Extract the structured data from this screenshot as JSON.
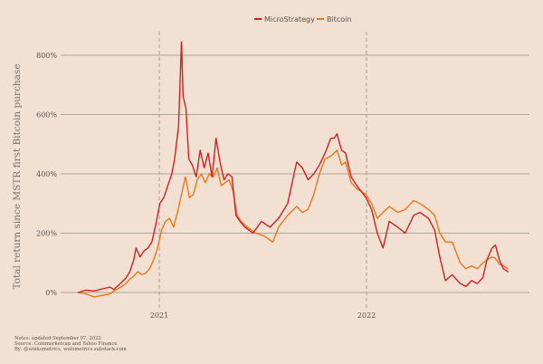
{
  "chart_data": {
    "type": "line",
    "title": "",
    "xlabel": "",
    "ylabel": "Total return since MSTR first Bitcoin purchase",
    "x_ticks": [
      "2021",
      "2022"
    ],
    "y_ticks": [
      "0%",
      "200%",
      "400%",
      "600%",
      "800%"
    ],
    "y_tick_values": [
      0,
      200,
      400,
      600,
      800
    ],
    "ylim": [
      -30,
      850
    ],
    "grid": "horizontal",
    "legend_position": "top-center",
    "series": [
      {
        "name": "MicroStrategy",
        "color": "#d7191c",
        "points": [
          [
            "2020-08-11",
            0
          ],
          [
            "2020-08-25",
            8
          ],
          [
            "2020-09-08",
            5
          ],
          [
            "2020-09-22",
            12
          ],
          [
            "2020-10-06",
            18
          ],
          [
            "2020-10-13",
            10
          ],
          [
            "2020-10-20",
            22
          ],
          [
            "2020-10-27",
            35
          ],
          [
            "2020-11-03",
            48
          ],
          [
            "2020-11-10",
            70
          ],
          [
            "2020-11-17",
            110
          ],
          [
            "2020-11-21",
            150
          ],
          [
            "2020-11-28",
            120
          ],
          [
            "2020-12-05",
            140
          ],
          [
            "2020-12-12",
            150
          ],
          [
            "2020-12-19",
            170
          ],
          [
            "2020-12-26",
            230
          ],
          [
            "2021-01-02",
            300
          ],
          [
            "2021-01-09",
            320
          ],
          [
            "2021-01-16",
            360
          ],
          [
            "2021-01-23",
            400
          ],
          [
            "2021-01-28",
            450
          ],
          [
            "2021-02-04",
            560
          ],
          [
            "2021-02-09",
            845
          ],
          [
            "2021-02-12",
            660
          ],
          [
            "2021-02-17",
            620
          ],
          [
            "2021-02-22",
            450
          ],
          [
            "2021-02-28",
            430
          ],
          [
            "2021-03-07",
            390
          ],
          [
            "2021-03-14",
            480
          ],
          [
            "2021-03-21",
            420
          ],
          [
            "2021-03-28",
            470
          ],
          [
            "2021-04-04",
            390
          ],
          [
            "2021-04-11",
            520
          ],
          [
            "2021-04-18",
            440
          ],
          [
            "2021-04-25",
            380
          ],
          [
            "2021-05-02",
            400
          ],
          [
            "2021-05-09",
            390
          ],
          [
            "2021-05-16",
            260
          ],
          [
            "2021-05-23",
            240
          ],
          [
            "2021-06-01",
            220
          ],
          [
            "2021-06-15",
            200
          ],
          [
            "2021-06-30",
            240
          ],
          [
            "2021-07-15",
            220
          ],
          [
            "2021-07-30",
            250
          ],
          [
            "2021-08-15",
            300
          ],
          [
            "2021-08-31",
            440
          ],
          [
            "2021-09-10",
            420
          ],
          [
            "2021-09-20",
            380
          ],
          [
            "2021-09-30",
            400
          ],
          [
            "2021-10-10",
            430
          ],
          [
            "2021-10-20",
            470
          ],
          [
            "2021-10-30",
            520
          ],
          [
            "2021-11-05",
            520
          ],
          [
            "2021-11-10",
            535
          ],
          [
            "2021-11-18",
            480
          ],
          [
            "2021-11-25",
            470
          ],
          [
            "2021-12-05",
            390
          ],
          [
            "2021-12-15",
            360
          ],
          [
            "2021-12-31",
            320
          ],
          [
            "2022-01-10",
            280
          ],
          [
            "2022-01-20",
            200
          ],
          [
            "2022-01-30",
            150
          ],
          [
            "2022-02-10",
            240
          ],
          [
            "2022-02-25",
            220
          ],
          [
            "2022-03-10",
            200
          ],
          [
            "2022-03-25",
            260
          ],
          [
            "2022-04-05",
            270
          ],
          [
            "2022-04-20",
            250
          ],
          [
            "2022-05-01",
            210
          ],
          [
            "2022-05-10",
            120
          ],
          [
            "2022-05-20",
            40
          ],
          [
            "2022-06-01",
            60
          ],
          [
            "2022-06-15",
            30
          ],
          [
            "2022-06-25",
            20
          ],
          [
            "2022-07-05",
            40
          ],
          [
            "2022-07-15",
            30
          ],
          [
            "2022-07-25",
            50
          ],
          [
            "2022-08-01",
            110
          ],
          [
            "2022-08-10",
            150
          ],
          [
            "2022-08-16",
            160
          ],
          [
            "2022-08-23",
            110
          ],
          [
            "2022-08-30",
            80
          ],
          [
            "2022-09-07",
            70
          ]
        ]
      },
      {
        "name": "Bitcoin",
        "color": "#f0730f",
        "points": [
          [
            "2020-08-11",
            0
          ],
          [
            "2020-08-25",
            -5
          ],
          [
            "2020-09-08",
            -15
          ],
          [
            "2020-09-22",
            -10
          ],
          [
            "2020-10-06",
            -5
          ],
          [
            "2020-10-13",
            5
          ],
          [
            "2020-10-20",
            12
          ],
          [
            "2020-10-27",
            20
          ],
          [
            "2020-11-03",
            30
          ],
          [
            "2020-11-10",
            45
          ],
          [
            "2020-11-17",
            55
          ],
          [
            "2020-11-24",
            70
          ],
          [
            "2020-12-01",
            60
          ],
          [
            "2020-12-08",
            65
          ],
          [
            "2020-12-15",
            80
          ],
          [
            "2020-12-22",
            110
          ],
          [
            "2020-12-29",
            150
          ],
          [
            "2021-01-05",
            210
          ],
          [
            "2021-01-12",
            240
          ],
          [
            "2021-01-19",
            250
          ],
          [
            "2021-01-26",
            220
          ],
          [
            "2021-02-02",
            270
          ],
          [
            "2021-02-09",
            330
          ],
          [
            "2021-02-16",
            390
          ],
          [
            "2021-02-23",
            320
          ],
          [
            "2021-03-02",
            330
          ],
          [
            "2021-03-09",
            380
          ],
          [
            "2021-03-16",
            400
          ],
          [
            "2021-03-23",
            370
          ],
          [
            "2021-03-30",
            400
          ],
          [
            "2021-04-06",
            390
          ],
          [
            "2021-04-13",
            420
          ],
          [
            "2021-04-20",
            360
          ],
          [
            "2021-04-27",
            370
          ],
          [
            "2021-05-04",
            380
          ],
          [
            "2021-05-11",
            340
          ],
          [
            "2021-05-18",
            260
          ],
          [
            "2021-05-25",
            240
          ],
          [
            "2021-06-05",
            220
          ],
          [
            "2021-06-20",
            200
          ],
          [
            "2021-07-05",
            190
          ],
          [
            "2021-07-20",
            170
          ],
          [
            "2021-07-30",
            220
          ],
          [
            "2021-08-15",
            260
          ],
          [
            "2021-08-31",
            290
          ],
          [
            "2021-09-10",
            270
          ],
          [
            "2021-09-20",
            280
          ],
          [
            "2021-09-30",
            330
          ],
          [
            "2021-10-10",
            400
          ],
          [
            "2021-10-20",
            450
          ],
          [
            "2021-10-30",
            460
          ],
          [
            "2021-11-05",
            470
          ],
          [
            "2021-11-10",
            480
          ],
          [
            "2021-11-18",
            430
          ],
          [
            "2021-11-25",
            440
          ],
          [
            "2021-12-05",
            370
          ],
          [
            "2021-12-15",
            350
          ],
          [
            "2021-12-31",
            330
          ],
          [
            "2022-01-10",
            300
          ],
          [
            "2022-01-20",
            250
          ],
          [
            "2022-01-30",
            270
          ],
          [
            "2022-02-10",
            290
          ],
          [
            "2022-02-25",
            270
          ],
          [
            "2022-03-10",
            280
          ],
          [
            "2022-03-25",
            310
          ],
          [
            "2022-04-05",
            300
          ],
          [
            "2022-04-20",
            280
          ],
          [
            "2022-05-01",
            260
          ],
          [
            "2022-05-10",
            200
          ],
          [
            "2022-05-20",
            170
          ],
          [
            "2022-06-01",
            170
          ],
          [
            "2022-06-15",
            100
          ],
          [
            "2022-06-25",
            80
          ],
          [
            "2022-07-05",
            90
          ],
          [
            "2022-07-15",
            80
          ],
          [
            "2022-07-25",
            100
          ],
          [
            "2022-08-01",
            110
          ],
          [
            "2022-08-10",
            120
          ],
          [
            "2022-08-16",
            115
          ],
          [
            "2022-08-23",
            95
          ],
          [
            "2022-08-30",
            90
          ],
          [
            "2022-09-07",
            80
          ]
        ]
      }
    ],
    "notes": [
      "Notes: updated September 07, 2022",
      "Source: Coinmarketcap and Yahoo Finance",
      "By: @winkometrics, wolometrics.substack.com"
    ]
  }
}
